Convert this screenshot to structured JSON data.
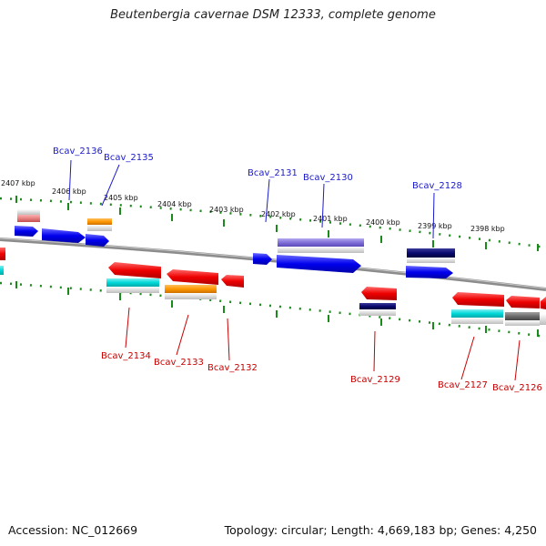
{
  "title": "Beutenbergia cavernae DSM 12333, complete genome",
  "footer": {
    "accession": "Accession: NC_012669",
    "stats": "Topology: circular; Length: 4,669,183 bp; Genes: 4,250"
  },
  "kbp_labels": [
    "2407 kbp",
    "2406 kbp",
    "2405 kbp",
    "2404 kbp",
    "2403 kbp",
    "2402 kbp",
    "2401 kbp",
    "2400 kbp",
    "2399 kbp",
    "2398 kbp"
  ],
  "gene_labels_top": [
    "Bcav_2136",
    "Bcav_2135",
    "Bcav_2131",
    "Bcav_2130",
    "Bcav_2128"
  ],
  "gene_labels_bottom": [
    "Bcav_2134",
    "Bcav_2133",
    "Bcav_2132",
    "Bcav_2129",
    "Bcav_2127",
    "Bcav_2126"
  ],
  "colors": {
    "backbone": "#8c8c8c",
    "tick": "#1a8a1a",
    "forward_label": "#1a1acc",
    "reverse_label": "#c80000"
  }
}
